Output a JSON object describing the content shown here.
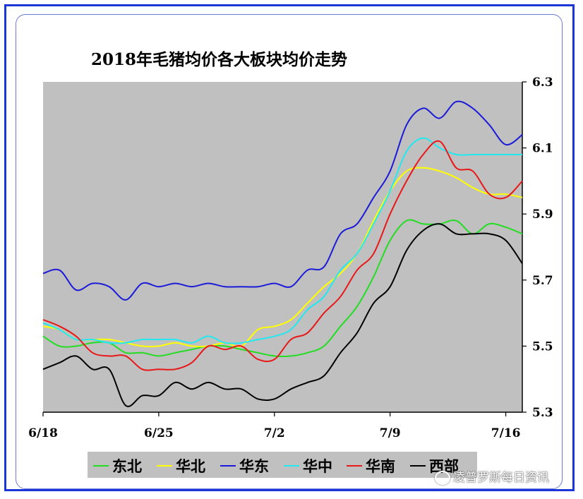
{
  "chart_data": {
    "type": "line",
    "title": "2018年毛猪均价各大板块均价走势",
    "x_tick_labels": [
      "6/18",
      "6/25",
      "7/2",
      "7/9",
      "7/16"
    ],
    "y_tick_labels": [
      "6.3",
      "6.1",
      "5.9",
      "5.7",
      "5.5",
      "5.3"
    ],
    "ylim": [
      5.3,
      6.3
    ],
    "x_dates": [
      "6/18",
      "6/19",
      "6/20",
      "6/21",
      "6/22",
      "6/23",
      "6/24",
      "6/25",
      "6/26",
      "6/27",
      "6/28",
      "6/29",
      "6/30",
      "7/1",
      "7/2",
      "7/3",
      "7/4",
      "7/5",
      "7/6",
      "7/7",
      "7/8",
      "7/9",
      "7/10",
      "7/11",
      "7/12",
      "7/13",
      "7/14",
      "7/15",
      "7/16",
      "7/17"
    ],
    "grid": false,
    "plot_background": "#c0c0c0",
    "legend_position": "bottom",
    "series": [
      {
        "name": "东北",
        "color": "#22dd22",
        "values": [
          5.53,
          5.5,
          5.5,
          5.51,
          5.51,
          5.48,
          5.48,
          5.47,
          5.48,
          5.49,
          5.5,
          5.5,
          5.49,
          5.48,
          5.47,
          5.47,
          5.48,
          5.5,
          5.56,
          5.62,
          5.71,
          5.82,
          5.88,
          5.87,
          5.87,
          5.88,
          5.84,
          5.87,
          5.86,
          5.84
        ]
      },
      {
        "name": "华北",
        "color": "#ffff00",
        "values": [
          5.56,
          5.55,
          5.52,
          5.52,
          5.52,
          5.51,
          5.5,
          5.5,
          5.51,
          5.5,
          5.5,
          5.51,
          5.5,
          5.55,
          5.56,
          5.58,
          5.63,
          5.68,
          5.72,
          5.78,
          5.88,
          5.97,
          6.03,
          6.04,
          6.03,
          6.01,
          5.98,
          5.96,
          5.96,
          5.95
        ]
      },
      {
        "name": "华东",
        "color": "#1a1ad8",
        "values": [
          5.72,
          5.73,
          5.67,
          5.69,
          5.68,
          5.64,
          5.69,
          5.68,
          5.69,
          5.68,
          5.69,
          5.68,
          5.68,
          5.68,
          5.69,
          5.68,
          5.73,
          5.74,
          5.84,
          5.87,
          5.95,
          6.03,
          6.17,
          6.22,
          6.19,
          6.24,
          6.22,
          6.17,
          6.11,
          6.14
        ]
      },
      {
        "name": "华中",
        "color": "#22e8f0",
        "values": [
          5.57,
          5.55,
          5.52,
          5.52,
          5.51,
          5.51,
          5.52,
          5.52,
          5.52,
          5.51,
          5.53,
          5.51,
          5.51,
          5.52,
          5.53,
          5.55,
          5.61,
          5.65,
          5.73,
          5.78,
          5.87,
          5.97,
          6.09,
          6.13,
          6.1,
          6.08,
          6.08,
          6.08,
          6.08,
          6.08
        ]
      },
      {
        "name": "华南",
        "color": "#e81818",
        "values": [
          5.58,
          5.56,
          5.53,
          5.48,
          5.47,
          5.47,
          5.43,
          5.43,
          5.43,
          5.45,
          5.5,
          5.49,
          5.5,
          5.46,
          5.46,
          5.52,
          5.54,
          5.6,
          5.65,
          5.73,
          5.78,
          5.9,
          6.0,
          6.08,
          6.12,
          6.04,
          6.03,
          5.96,
          5.95,
          6.0
        ]
      },
      {
        "name": "西部",
        "color": "#000000",
        "values": [
          5.43,
          5.45,
          5.47,
          5.43,
          5.43,
          5.32,
          5.35,
          5.35,
          5.39,
          5.37,
          5.39,
          5.37,
          5.37,
          5.34,
          5.34,
          5.37,
          5.39,
          5.41,
          5.48,
          5.54,
          5.63,
          5.68,
          5.79,
          5.85,
          5.87,
          5.84,
          5.84,
          5.84,
          5.82,
          5.75
        ]
      }
    ]
  },
  "watermark": "凌普罗斯每日资讯"
}
